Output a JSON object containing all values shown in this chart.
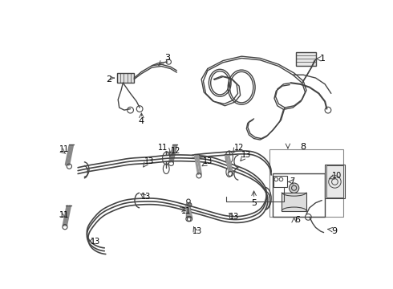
{
  "bg_color": "#ffffff",
  "line_color": "#444444",
  "label_color": "#000000",
  "fig_width": 4.9,
  "fig_height": 3.6,
  "dpi": 100
}
